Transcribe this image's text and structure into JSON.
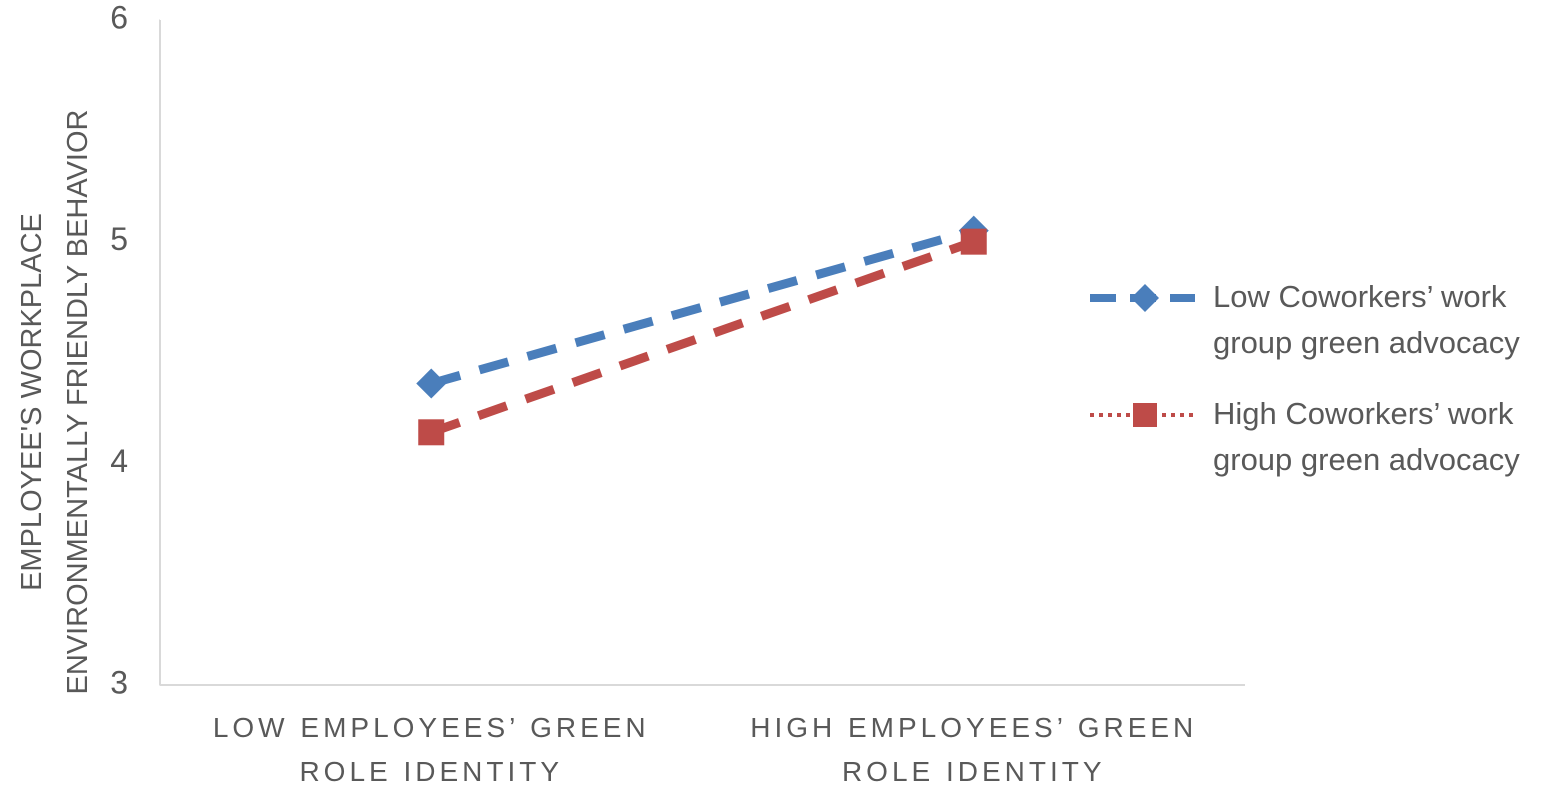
{
  "chart_data": {
    "type": "line",
    "y_label": "EMPLOYEE'S WORKPLACE ENVIRONMENTALLY FRIENDLY BEHAVIOR",
    "categories": [
      "LOW EMPLOYEES’ GREEN ROLE IDENTITY",
      "HIGH EMPLOYEES’ GREEN ROLE IDENTITY"
    ],
    "series": [
      {
        "name": "Low Coworkers’ work group green advocacy",
        "color": "#4a7ebb",
        "marker": "diamond",
        "legend_line": "dashed",
        "values": [
          4.36,
          5.05
        ]
      },
      {
        "name": "High Coworkers’ work group green advocacy",
        "color": "#be4b48",
        "marker": "square",
        "legend_line": "dotted",
        "values": [
          4.14,
          5.0
        ]
      }
    ],
    "ylim": [
      3,
      6
    ],
    "yticks": [
      3,
      4,
      5,
      6
    ],
    "grid": false,
    "legend": "right"
  }
}
